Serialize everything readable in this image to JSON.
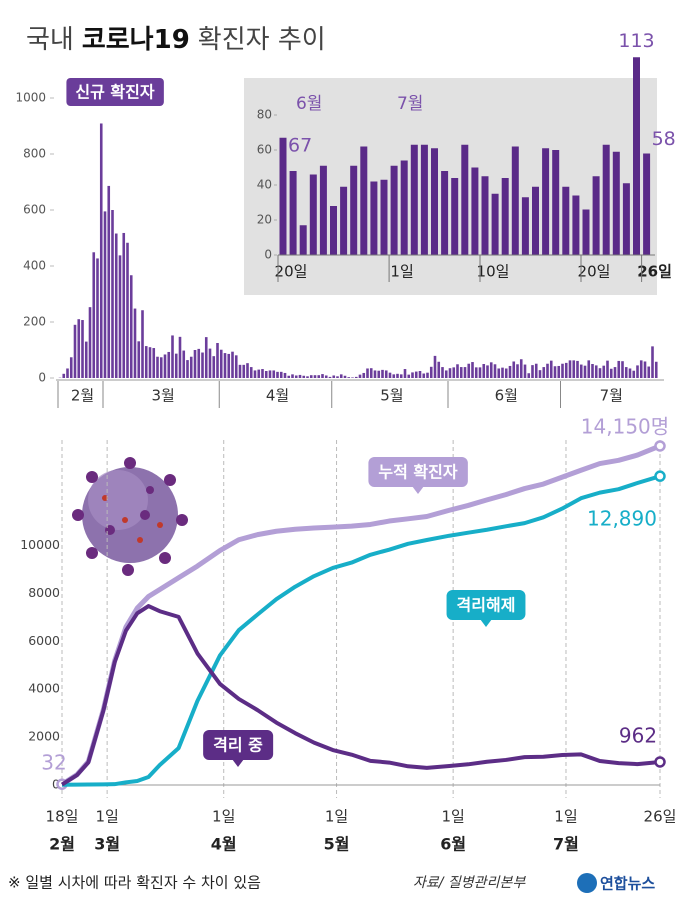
{
  "header": {
    "title_parts": [
      "국내",
      "코로나19",
      "확진자 추이"
    ]
  },
  "footer": {
    "note": "※ 일별 시차에 따라 확진자 수 차이 있음",
    "source": "자료/ 질병관리본부",
    "logo": "연합뉴스"
  },
  "chart_data": [
    {
      "type": "bar",
      "subtitle": "신규 확진자",
      "color": "#6b3d9b",
      "ylim": [
        0,
        1000
      ],
      "yticks": [
        0,
        200,
        400,
        600,
        800,
        1000
      ],
      "categories": [
        "2월",
        null,
        null,
        null,
        null,
        null,
        null,
        null,
        null,
        null,
        null,
        null,
        "3월",
        null,
        null,
        null,
        null,
        null,
        null,
        null,
        null,
        null,
        null,
        null,
        null,
        null,
        null,
        null,
        null,
        null,
        null,
        null,
        null,
        null,
        null,
        null,
        null,
        null,
        null,
        null,
        null,
        null,
        null,
        "4월",
        null,
        null,
        null,
        null,
        null,
        null,
        null,
        null,
        null,
        null,
        null,
        null,
        null,
        null,
        null,
        null,
        null,
        null,
        null,
        null,
        null,
        null,
        null,
        null,
        null,
        null,
        null,
        null,
        null,
        "5월",
        null,
        null,
        null,
        null,
        null,
        null,
        null,
        null,
        null,
        null,
        null,
        null,
        null,
        null,
        null,
        null,
        null,
        null,
        null,
        null,
        null,
        null,
        null,
        null,
        null,
        null,
        null,
        null,
        null,
        null,
        "6월",
        null,
        null,
        null,
        null,
        null,
        null,
        null,
        null,
        null,
        null,
        null,
        null,
        null,
        null,
        null,
        null,
        null,
        null,
        null,
        null,
        null,
        null,
        null,
        null,
        null,
        null,
        null,
        null,
        null,
        "7월",
        null,
        null,
        null,
        null,
        null,
        null,
        null,
        null,
        null,
        null,
        null,
        null,
        null,
        null,
        null,
        null,
        null,
        null,
        null,
        null,
        null,
        null,
        null,
        null,
        null
      ],
      "values": [
        1,
        15,
        34,
        74,
        190,
        210,
        207,
        130,
        253,
        449,
        427,
        909,
        595,
        686,
        600,
        516,
        438,
        518,
        483,
        367,
        248,
        131,
        242,
        114,
        110,
        107,
        76,
        74,
        84,
        93,
        152,
        87,
        147,
        98,
        64,
        76,
        100,
        104,
        91,
        146,
        105,
        78,
        125,
        101,
        89,
        86,
        94,
        81,
        47,
        47,
        53,
        39,
        27,
        30,
        32,
        25,
        27,
        27,
        22,
        22,
        18,
        8,
        13,
        9,
        11,
        8,
        6,
        10,
        10,
        10,
        14,
        9,
        4,
        9,
        6,
        13,
        8,
        3,
        2,
        4,
        12,
        18,
        34,
        35,
        27,
        26,
        29,
        27,
        19,
        13,
        15,
        13,
        32,
        12,
        20,
        23,
        25,
        16,
        19,
        40,
        79,
        58,
        39,
        27,
        35,
        38,
        49,
        39,
        39,
        51,
        57,
        38,
        38,
        50,
        45,
        56,
        49,
        34,
        37,
        34,
        43,
        59,
        49,
        67,
        48,
        17,
        46,
        51,
        28,
        39,
        51,
        62,
        42,
        43,
        51,
        54,
        63,
        63,
        61,
        48,
        44,
        63,
        50,
        45,
        35,
        44,
        62,
        33,
        39,
        61,
        60,
        39,
        34,
        26,
        45,
        63,
        59,
        41,
        113,
        58
      ]
    },
    {
      "type": "bar",
      "color": "#5a2a88",
      "label_color": "#7b52ab",
      "ylim": [
        0,
        80
      ],
      "yticks": [
        0,
        20,
        40,
        60,
        80
      ],
      "categories": [
        "20일",
        null,
        null,
        null,
        null,
        null,
        null,
        null,
        null,
        null,
        null,
        "1일",
        null,
        null,
        null,
        null,
        null,
        null,
        null,
        null,
        "10일",
        null,
        null,
        null,
        null,
        null,
        null,
        null,
        null,
        null,
        "20일",
        null,
        null,
        null,
        null,
        null,
        "26일"
      ],
      "month_labels": [
        null,
        null,
        "6월",
        null,
        null,
        null,
        null,
        null,
        null,
        null,
        null,
        null,
        "7월",
        null,
        null,
        null,
        null,
        null,
        null,
        null,
        null,
        null,
        null,
        null,
        null,
        null,
        null,
        null,
        null,
        null,
        null,
        null,
        null,
        null,
        null,
        null,
        null
      ],
      "values": [
        67,
        48,
        17,
        46,
        51,
        28,
        39,
        51,
        62,
        42,
        43,
        51,
        54,
        63,
        63,
        61,
        48,
        44,
        63,
        50,
        45,
        35,
        44,
        62,
        33,
        39,
        61,
        60,
        39,
        34,
        26,
        45,
        63,
        59,
        41,
        113,
        58
      ],
      "value_labels": [
        "67",
        null,
        null,
        null,
        null,
        null,
        null,
        null,
        null,
        null,
        null,
        null,
        null,
        null,
        null,
        null,
        null,
        null,
        null,
        null,
        null,
        null,
        null,
        null,
        null,
        null,
        null,
        null,
        null,
        null,
        null,
        null,
        null,
        null,
        null,
        "113",
        "58"
      ]
    },
    {
      "type": "line",
      "x": [
        "02-18",
        "02-22",
        "02-25",
        "02-29",
        "03-03",
        "03-06",
        "03-09",
        "03-12",
        "03-15",
        "03-20",
        "03-25",
        "03-31",
        "04-05",
        "04-10",
        "04-15",
        "04-20",
        "04-25",
        "04-30",
        "05-05",
        "05-10",
        "05-15",
        "05-20",
        "05-25",
        "05-31",
        "06-05",
        "06-10",
        "06-15",
        "06-20",
        "06-25",
        "06-30",
        "07-05",
        "07-10",
        "07-15",
        "07-20",
        "07-26"
      ],
      "xlim": [
        "02-18",
        "07-26"
      ],
      "xticks": [
        {
          "value": "02-18",
          "label": "18일",
          "month": "2월"
        },
        {
          "value": "03-01",
          "label": "1일",
          "month": "3월"
        },
        {
          "value": "04-01",
          "label": "1일",
          "month": "4월"
        },
        {
          "value": "05-01",
          "label": "1일",
          "month": "5월"
        },
        {
          "value": "06-01",
          "label": "1일",
          "month": "6월"
        },
        {
          "value": "07-01",
          "label": "1일",
          "month": "7월"
        },
        {
          "value": "07-26",
          "label": "26일"
        }
      ],
      "ylim": [
        0,
        14400
      ],
      "yticks": [
        0,
        2000,
        4000,
        6000,
        8000,
        10000
      ],
      "series": [
        {
          "name": "누적 확진자",
          "color": "#b39fd6",
          "values": [
            32,
            433,
            977,
            3150,
            5186,
            6593,
            7382,
            7869,
            8162,
            8652,
            9137,
            9786,
            10237,
            10450,
            10591,
            10674,
            10728,
            10765,
            10806,
            10874,
            11018,
            11110,
            11206,
            11468,
            11668,
            11902,
            12121,
            12373,
            12563,
            12850,
            13137,
            13417,
            13551,
            13771,
            14150
          ],
          "value_labels": [
            "32",
            null,
            null,
            null,
            null,
            null,
            null,
            null,
            null,
            null,
            null,
            null,
            null,
            null,
            null,
            null,
            null,
            null,
            null,
            null,
            null,
            null,
            null,
            null,
            null,
            null,
            null,
            null,
            null,
            null,
            null,
            null,
            null,
            null,
            "14,150명"
          ]
        },
        {
          "name": "격리해제",
          "color": "#17aec8",
          "values": [
            12,
            16,
            22,
            27,
            34,
            108,
            166,
            333,
            834,
            1540,
            3507,
            5408,
            6463,
            7117,
            7757,
            8277,
            8717,
            9059,
            9283,
            9610,
            9823,
            10066,
            10226,
            10405,
            10531,
            10654,
            10798,
            10930,
            11172,
            11537,
            11970,
            12204,
            12348,
            12604,
            12890
          ],
          "value_labels": [
            null,
            null,
            null,
            null,
            null,
            null,
            null,
            null,
            null,
            null,
            null,
            null,
            null,
            null,
            null,
            null,
            null,
            null,
            null,
            null,
            null,
            null,
            null,
            null,
            null,
            null,
            null,
            null,
            null,
            null,
            null,
            null,
            null,
            null,
            "12,890"
          ]
        },
        {
          "name": "격리 중",
          "color": "#5c2d86",
          "values": [
            20,
            417,
            945,
            3106,
            5124,
            6443,
            7165,
            7470,
            7253,
            7018,
            5493,
            4216,
            3591,
            3125,
            2605,
            2163,
            1769,
            1459,
            1267,
            1008,
            935,
            781,
            714,
            793,
            864,
            972,
            1046,
            1163,
            1180,
            1250,
            1280,
            1000,
            914,
            871,
            962
          ],
          "value_labels": [
            null,
            null,
            null,
            null,
            null,
            null,
            null,
            null,
            null,
            null,
            null,
            null,
            null,
            null,
            null,
            null,
            null,
            null,
            null,
            null,
            null,
            null,
            null,
            null,
            null,
            null,
            null,
            null,
            null,
            null,
            null,
            null,
            null,
            null,
            "962"
          ]
        }
      ]
    }
  ]
}
